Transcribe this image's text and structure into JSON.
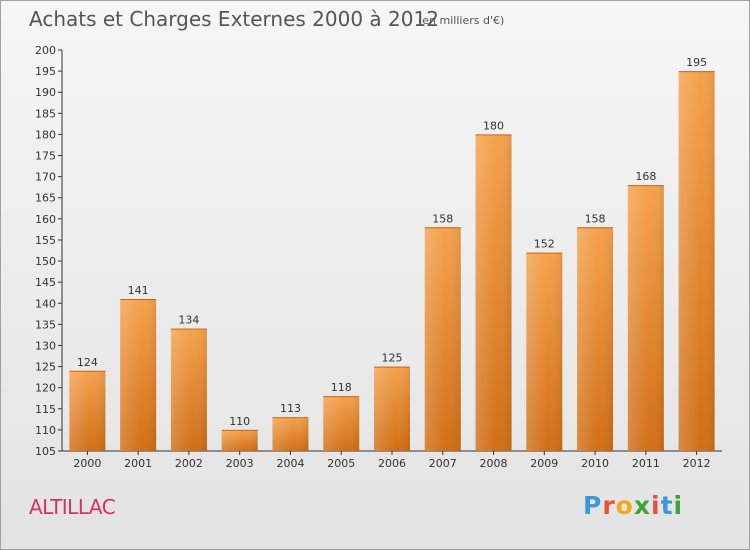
{
  "title": "Achats et Charges Externes 2000 à 2012",
  "unit_label": "(en milliers d'€)",
  "commune": "ALTILLAC",
  "brand": {
    "letters": [
      "P",
      "r",
      "o",
      "x",
      "i",
      "t",
      "i"
    ],
    "colors": [
      "#3a9ad9",
      "#e8503a",
      "#f2a81d",
      "#3aa63a",
      "#e8503a",
      "#3a9ad9",
      "#3aa63a"
    ]
  },
  "colors": {
    "bar": "#f08a24",
    "text": "#555555",
    "commune": "#d9306a"
  },
  "chart_data": {
    "type": "bar",
    "categories": [
      "2000",
      "2001",
      "2002",
      "2003",
      "2004",
      "2005",
      "2006",
      "2007",
      "2008",
      "2009",
      "2010",
      "2011",
      "2012"
    ],
    "values": [
      124,
      141,
      134,
      110,
      113,
      118,
      125,
      158,
      180,
      152,
      158,
      168,
      195
    ],
    "ylim": [
      105,
      200
    ],
    "yticks": [
      105,
      110,
      115,
      120,
      125,
      130,
      135,
      140,
      145,
      150,
      155,
      160,
      165,
      170,
      175,
      180,
      185,
      190,
      195,
      200
    ],
    "grid": false
  }
}
